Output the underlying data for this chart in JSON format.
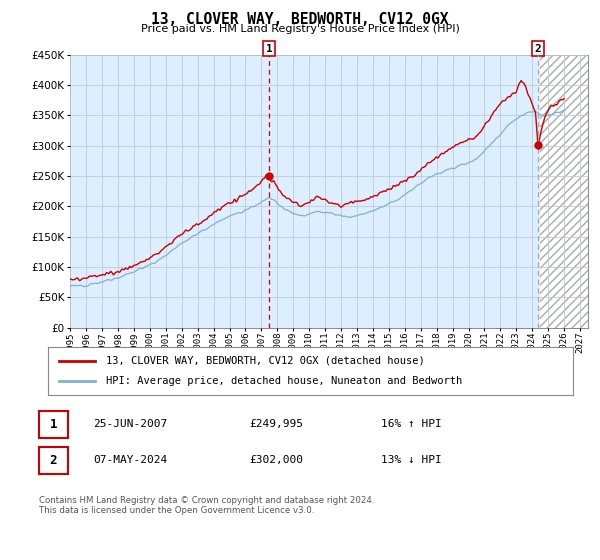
{
  "title": "13, CLOVER WAY, BEDWORTH, CV12 0GX",
  "subtitle": "Price paid vs. HM Land Registry's House Price Index (HPI)",
  "ylim": [
    0,
    450000
  ],
  "xlim_start": 1995.0,
  "xlim_end": 2027.5,
  "xtick_years": [
    1995,
    1996,
    1997,
    1998,
    1999,
    2000,
    2001,
    2002,
    2003,
    2004,
    2005,
    2006,
    2007,
    2008,
    2009,
    2010,
    2011,
    2012,
    2013,
    2014,
    2015,
    2016,
    2017,
    2018,
    2019,
    2020,
    2021,
    2022,
    2023,
    2024,
    2025,
    2026,
    2027
  ],
  "price_paid_color": "#cc0000",
  "hpi_color": "#7fb0d8",
  "annotation_color": "#cc0000",
  "point2_vline_color": "#aaaaaa",
  "plot_bg_color": "#ddeeff",
  "point1_date": 2007.48,
  "point1_value": 249995,
  "point2_date": 2024.36,
  "point2_value": 302000,
  "legend_label1": "13, CLOVER WAY, BEDWORTH, CV12 0GX (detached house)",
  "legend_label2": "HPI: Average price, detached house, Nuneaton and Bedworth",
  "ann1_date": "25-JUN-2007",
  "ann1_price": "£249,995",
  "ann1_hpi": "16% ↑ HPI",
  "ann2_date": "07-MAY-2024",
  "ann2_price": "£302,000",
  "ann2_hpi": "13% ↓ HPI",
  "footer": "Contains HM Land Registry data © Crown copyright and database right 2024.\nThis data is licensed under the Open Government Licence v3.0.",
  "bg_color": "#ffffff",
  "grid_color": "#bbccdd",
  "hatch_start": 2024.5
}
